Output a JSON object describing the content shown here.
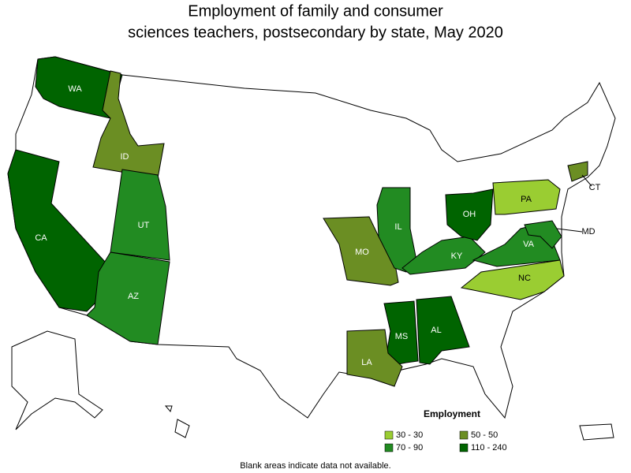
{
  "title_lines": [
    "Employment of family and consumer",
    "sciences teachers, postsecondary by state, May 2020"
  ],
  "states": [
    {
      "label": "WA",
      "color": "#006400"
    },
    {
      "label": "ID",
      "color": "#6b8e23"
    },
    {
      "label": "CA",
      "color": "#006400"
    },
    {
      "label": "UT",
      "color": "#228b22"
    },
    {
      "label": "AZ",
      "color": "#228b22"
    },
    {
      "label": "MO",
      "color": "#6b8e23"
    },
    {
      "label": "IL",
      "color": "#228b22"
    },
    {
      "label": "KY",
      "color": "#228b22"
    },
    {
      "label": "OH",
      "color": "#006400"
    },
    {
      "label": "PA",
      "color": "#9acd32"
    },
    {
      "label": "VA",
      "color": "#228b22"
    },
    {
      "label": "NC",
      "color": "#9acd32"
    },
    {
      "label": "MS",
      "color": "#006400"
    },
    {
      "label": "AL",
      "color": "#006400"
    },
    {
      "label": "LA",
      "color": "#6b8e23"
    },
    {
      "label": "CT",
      "color": "#6b8e23"
    },
    {
      "label": "MD",
      "color": "#228b22"
    }
  ],
  "legend": {
    "title": "Employment",
    "items": [
      {
        "label": "30 - 30",
        "color": "#9acd32"
      },
      {
        "label": "50 - 50",
        "color": "#6b8e23"
      },
      {
        "label": "70 - 90",
        "color": "#228b22"
      },
      {
        "label": "110 - 240",
        "color": "#006400"
      }
    ]
  },
  "footnote": "Blank areas indicate data not available."
}
